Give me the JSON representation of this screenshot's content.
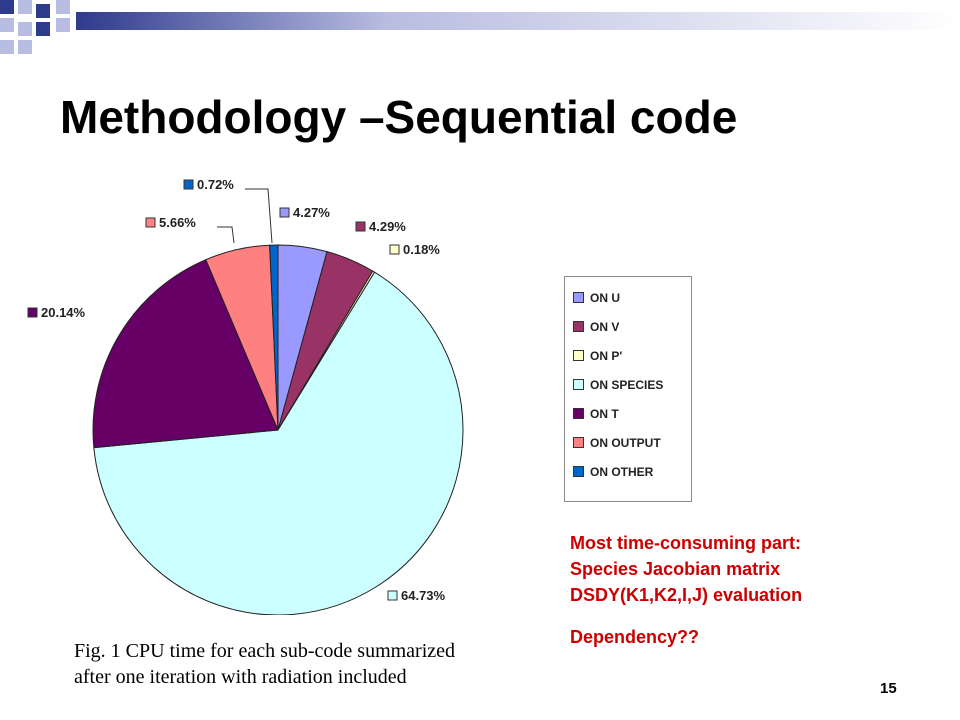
{
  "slide": {
    "title": "Methodology –Sequential code",
    "page_number": "15",
    "caption_lines": [
      "Fig. 1 CPU time for each sub-code summarized",
      "after one iteration with radiation included"
    ],
    "note_lines": [
      "Most time-consuming part:",
      "Species Jacobian matrix",
      "DSDY(K1,K2,I,J) evaluation"
    ],
    "question": "Dependency??",
    "colors": {
      "accent_blue": "#2e3a8c",
      "decor_light": "#b8bce0",
      "note_red": "#cc0000"
    }
  },
  "chart_data": {
    "type": "pie",
    "start_angle_deg": 90,
    "direction": "clockwise",
    "legend_position": "right",
    "slices": [
      {
        "name": "ON U",
        "value": 4.27,
        "label": "4.27%",
        "color": "#9999ff"
      },
      {
        "name": "ON V",
        "value": 4.29,
        "label": "4.29%",
        "color": "#993366"
      },
      {
        "name": "ON P'",
        "value": 0.18,
        "label": "0.18%",
        "color": "#ffffcc"
      },
      {
        "name": "ON SPECIES",
        "value": 64.73,
        "label": "64.73%",
        "color": "#ccffff"
      },
      {
        "name": "ON T",
        "value": 20.14,
        "label": "20.14%",
        "color": "#660066"
      },
      {
        "name": "ON OUTPUT",
        "value": 5.66,
        "label": "5.66%",
        "color": "#ff8080"
      },
      {
        "name": "ON OTHER",
        "value": 0.72,
        "label": "0.72%",
        "color": "#0066cc"
      }
    ]
  }
}
